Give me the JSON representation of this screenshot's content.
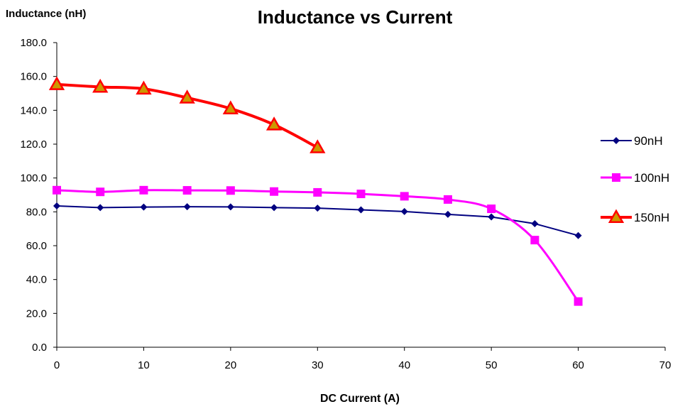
{
  "chart_data": {
    "type": "line",
    "title": "Inductance vs Current",
    "xlabel": "DC Current (A)",
    "ylabel": "Inductance (nH)",
    "xlim": [
      0,
      70
    ],
    "ylim": [
      0,
      180
    ],
    "x_ticks": [
      "0",
      "10",
      "20",
      "30",
      "40",
      "50",
      "60",
      "70"
    ],
    "y_ticks": [
      "0.0",
      "20.0",
      "40.0",
      "60.0",
      "80.0",
      "100.0",
      "120.0",
      "140.0",
      "160.0",
      "180.0"
    ],
    "grid": false,
    "legend_position": "right",
    "series": [
      {
        "name": "90nH",
        "color": "#000080",
        "marker": "diamond",
        "smooth": false,
        "x": [
          0,
          5,
          10,
          15,
          20,
          25,
          30,
          35,
          40,
          45,
          50,
          55,
          60
        ],
        "values": [
          83.5,
          82.5,
          82.8,
          83.0,
          82.9,
          82.5,
          82.2,
          81.2,
          80.2,
          78.5,
          77.0,
          73.0,
          66.0
        ]
      },
      {
        "name": "100nH",
        "color": "#FF00FF",
        "marker": "square",
        "smooth": true,
        "x": [
          0,
          5,
          10,
          15,
          20,
          25,
          30,
          35,
          40,
          45,
          50,
          55,
          60
        ],
        "values": [
          92.8,
          91.8,
          92.8,
          92.7,
          92.6,
          92.0,
          91.5,
          90.6,
          89.2,
          87.3,
          81.8,
          63.3,
          27.0
        ]
      },
      {
        "name": "150nH",
        "color": "#FF0000",
        "marker": "triangle",
        "marker_fill": "#CC9900",
        "smooth": true,
        "x": [
          0,
          5,
          10,
          15,
          20,
          25,
          30
        ],
        "values": [
          155.3,
          153.8,
          152.7,
          147.4,
          141.0,
          131.5,
          118.0
        ]
      }
    ]
  }
}
